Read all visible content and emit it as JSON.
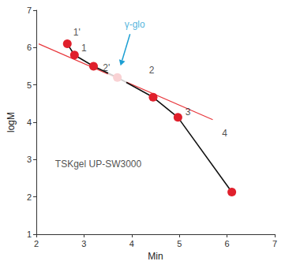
{
  "chart_data": {
    "type": "line",
    "x_label": "Min",
    "y_label": "logM",
    "xlim": [
      2,
      7
    ],
    "ylim": [
      1,
      7
    ],
    "xticks": [
      2,
      3,
      4,
      5,
      6,
      7
    ],
    "yticks": [
      1,
      2,
      3,
      4,
      5,
      6,
      7
    ],
    "grid": false,
    "series": [
      {
        "type": "line",
        "color": "#e8383d",
        "marker": "none",
        "line_style": "solid",
        "x": [
          2.05,
          5.7
        ],
        "values": [
          6.1,
          4.07
        ]
      },
      {
        "type": "line",
        "color": "#111111",
        "marker": "circle",
        "line_style": "solid",
        "colors": [
          "#e0202c",
          "#e0202c",
          "#e0202c",
          "#e0202c",
          "#e0202c",
          "#e0202c",
          "#e0202c"
        ],
        "x": [
          2.65,
          2.8,
          3.2,
          3.7,
          4.45,
          4.97,
          6.1
        ],
        "values": [
          6.1,
          5.8,
          5.5,
          5.2,
          4.67,
          4.13,
          2.13
        ]
      }
    ],
    "annotations": [
      {
        "text": "1'",
        "x": 2.85,
        "y": 6.4
      },
      {
        "text": "1",
        "x": 3.0,
        "y": 5.98
      },
      {
        "text": "2'",
        "x": 3.47,
        "y": 5.45
      },
      {
        "text": "2",
        "x": 4.42,
        "y": 5.4
      },
      {
        "text": "3",
        "x": 5.18,
        "y": 4.27
      },
      {
        "text": "4",
        "x": 5.95,
        "y": 3.7
      },
      {
        "text": "TSKgel UP-SW3000",
        "x": 3.3,
        "y": 2.88
      }
    ],
    "callout": {
      "text": "γ-glo",
      "x": 3.7,
      "y": 5.2,
      "color": "#1c9fd3"
    }
  }
}
